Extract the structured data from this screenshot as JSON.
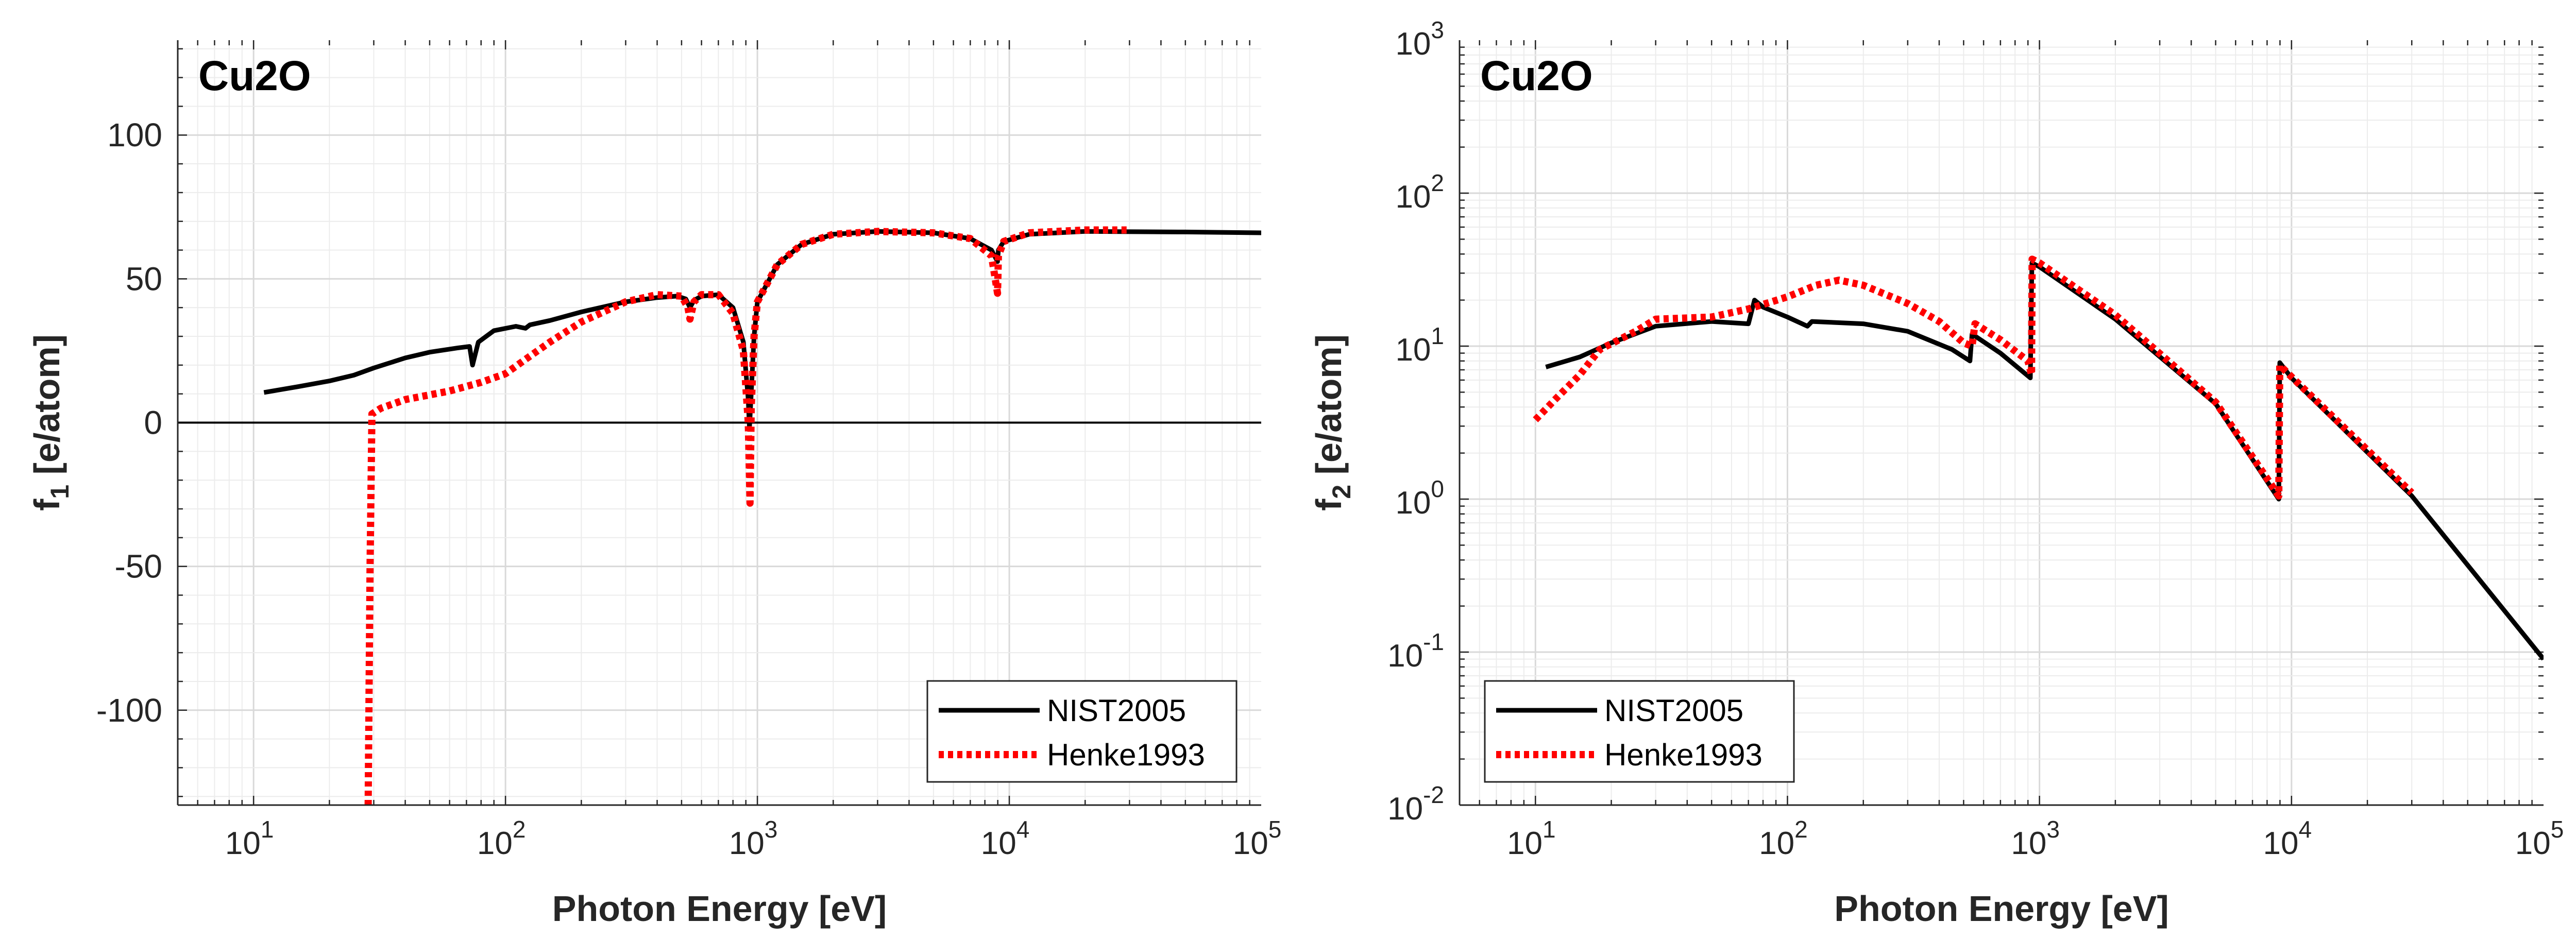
{
  "chart_data": [
    {
      "type": "line",
      "panel_title": "Cu2O",
      "xlabel": "Photon Energy [eV]",
      "ylabel_main": "f",
      "ylabel_sub": "1",
      "ylabel_rest": " [e/atom]",
      "x_scale": "log",
      "y_scale": "linear",
      "xlim": [
        5,
        100000
      ],
      "ylim": [
        -133,
        133
      ],
      "x_ticks": [
        10,
        100,
        1000,
        10000,
        100000
      ],
      "x_tick_labels": [
        {
          "base": "10",
          "exp": "1"
        },
        {
          "base": "10",
          "exp": "2"
        },
        {
          "base": "10",
          "exp": "3"
        },
        {
          "base": "10",
          "exp": "4"
        },
        {
          "base": "10",
          "exp": "5"
        }
      ],
      "y_ticks": [
        -100,
        -50,
        0,
        50,
        100
      ],
      "y_tick_labels": [
        "-100",
        "-50",
        "0",
        "50",
        "100"
      ],
      "grid": true,
      "zero_line": true,
      "legend_position": "bottom-right",
      "series": [
        {
          "name": "NIST2005",
          "color": "#000000",
          "style": "solid",
          "points": [
            [
              11,
              10.5
            ],
            [
              15,
              12.5
            ],
            [
              20,
              14.5
            ],
            [
              25,
              16.5
            ],
            [
              30,
              19
            ],
            [
              40,
              22.5
            ],
            [
              50,
              24.5
            ],
            [
              65,
              26
            ],
            [
              72,
              26.5
            ],
            [
              74,
              20
            ],
            [
              78,
              28
            ],
            [
              90,
              32
            ],
            [
              110,
              33.5
            ],
            [
              120,
              32.8
            ],
            [
              125,
              34
            ],
            [
              150,
              35.5
            ],
            [
              200,
              38.5
            ],
            [
              300,
              42
            ],
            [
              400,
              43.5
            ],
            [
              480,
              44
            ],
            [
              520,
              43
            ],
            [
              540,
              40
            ],
            [
              560,
              42.5
            ],
            [
              600,
              44
            ],
            [
              700,
              44.5
            ],
            [
              800,
              40
            ],
            [
              880,
              28
            ],
            [
              920,
              8
            ],
            [
              930,
              -2
            ],
            [
              945,
              10
            ],
            [
              970,
              30
            ],
            [
              1000,
              42
            ],
            [
              1200,
              55
            ],
            [
              1500,
              62
            ],
            [
              2000,
              65.5
            ],
            [
              3000,
              66.5
            ],
            [
              5000,
              66
            ],
            [
              7000,
              64
            ],
            [
              8500,
              60
            ],
            [
              8980,
              56
            ],
            [
              9050,
              60
            ],
            [
              9500,
              63
            ],
            [
              12000,
              65.5
            ],
            [
              20000,
              66.5
            ],
            [
              50000,
              66.3
            ],
            [
              100000,
              66
            ]
          ]
        },
        {
          "name": "Henke1993",
          "color": "#ff0000",
          "style": "dotted",
          "points": [
            [
              28.5,
              -133
            ],
            [
              29,
              -50
            ],
            [
              29.5,
              3
            ],
            [
              32,
              5
            ],
            [
              40,
              8
            ],
            [
              60,
              11
            ],
            [
              80,
              14
            ],
            [
              100,
              17
            ],
            [
              120,
              22
            ],
            [
              150,
              28
            ],
            [
              200,
              35
            ],
            [
              300,
              42
            ],
            [
              400,
              44.5
            ],
            [
              500,
              44
            ],
            [
              530,
              40
            ],
            [
              540,
              36
            ],
            [
              560,
              42
            ],
            [
              600,
              44.5
            ],
            [
              700,
              44.5
            ],
            [
              800,
              38
            ],
            [
              880,
              25
            ],
            [
              920,
              0
            ],
            [
              935,
              -28
            ],
            [
              945,
              5
            ],
            [
              970,
              30
            ],
            [
              1000,
              42
            ],
            [
              1200,
              55
            ],
            [
              1500,
              62
            ],
            [
              2000,
              65.5
            ],
            [
              3000,
              66.5
            ],
            [
              5000,
              66
            ],
            [
              7000,
              64
            ],
            [
              8500,
              58
            ],
            [
              8979,
              45
            ],
            [
              9050,
              58
            ],
            [
              9500,
              63
            ],
            [
              12000,
              66
            ],
            [
              20000,
              67
            ],
            [
              30000,
              67
            ]
          ]
        }
      ]
    },
    {
      "type": "line",
      "panel_title": "Cu2O",
      "xlabel": "Photon Energy [eV]",
      "ylabel_main": "f",
      "ylabel_sub": "2",
      "ylabel_rest": " [e/atom]",
      "x_scale": "log",
      "y_scale": "log",
      "xlim": [
        5,
        100000
      ],
      "ylim": [
        0.01,
        1000
      ],
      "x_ticks": [
        10,
        100,
        1000,
        10000,
        100000
      ],
      "x_tick_labels": [
        {
          "base": "10",
          "exp": "1"
        },
        {
          "base": "10",
          "exp": "2"
        },
        {
          "base": "10",
          "exp": "3"
        },
        {
          "base": "10",
          "exp": "4"
        },
        {
          "base": "10",
          "exp": "5"
        }
      ],
      "y_ticks": [
        0.01,
        0.1,
        1,
        10,
        100,
        1000
      ],
      "y_tick_labels": [
        {
          "base": "10",
          "exp": "-2"
        },
        {
          "base": "10",
          "exp": "-1"
        },
        {
          "base": "10",
          "exp": "0"
        },
        {
          "base": "10",
          "exp": "1"
        },
        {
          "base": "10",
          "exp": "2"
        },
        {
          "base": "10",
          "exp": "3"
        }
      ],
      "grid": true,
      "zero_line": false,
      "legend_position": "bottom-left",
      "series": [
        {
          "name": "NIST2005",
          "color": "#000000",
          "style": "solid",
          "points": [
            [
              11,
              7.3
            ],
            [
              15,
              8.5
            ],
            [
              20,
              10.5
            ],
            [
              30,
              13.5
            ],
            [
              50,
              14.5
            ],
            [
              70,
              14
            ],
            [
              74,
              20
            ],
            [
              80,
              18
            ],
            [
              100,
              15.5
            ],
            [
              120,
              13.5
            ],
            [
              125,
              14.5
            ],
            [
              200,
              14
            ],
            [
              300,
              12.5
            ],
            [
              450,
              9.5
            ],
            [
              530,
              8
            ],
            [
              540,
              12
            ],
            [
              700,
              9
            ],
            [
              920,
              6.2
            ],
            [
              933,
              35
            ],
            [
              1000,
              33
            ],
            [
              2000,
              15
            ],
            [
              5000,
              4.2
            ],
            [
              8900,
              1.0
            ],
            [
              8980,
              7.8
            ],
            [
              10000,
              6.2
            ],
            [
              30000,
              1.05
            ],
            [
              100000,
              0.09
            ]
          ]
        },
        {
          "name": "Henke1993",
          "color": "#ff0000",
          "style": "dotted",
          "points": [
            [
              10,
              3.3
            ],
            [
              12,
              4.5
            ],
            [
              15,
              6.5
            ],
            [
              18,
              9.5
            ],
            [
              25,
              12.5
            ],
            [
              30,
              15
            ],
            [
              50,
              15.5
            ],
            [
              70,
              17.5
            ],
            [
              100,
              21
            ],
            [
              130,
              25
            ],
            [
              160,
              27
            ],
            [
              200,
              25
            ],
            [
              300,
              19
            ],
            [
              400,
              14.5
            ],
            [
              500,
              10.5
            ],
            [
              540,
              10
            ],
            [
              555,
              14
            ],
            [
              700,
              11
            ],
            [
              900,
              8
            ],
            [
              930,
              6.5
            ],
            [
              935,
              37
            ],
            [
              1000,
              35
            ],
            [
              2000,
              16
            ],
            [
              5000,
              4.3
            ],
            [
              8900,
              1.05
            ],
            [
              8980,
              7.5
            ],
            [
              10000,
              6.3
            ],
            [
              30000,
              1.1
            ]
          ]
        }
      ]
    }
  ]
}
